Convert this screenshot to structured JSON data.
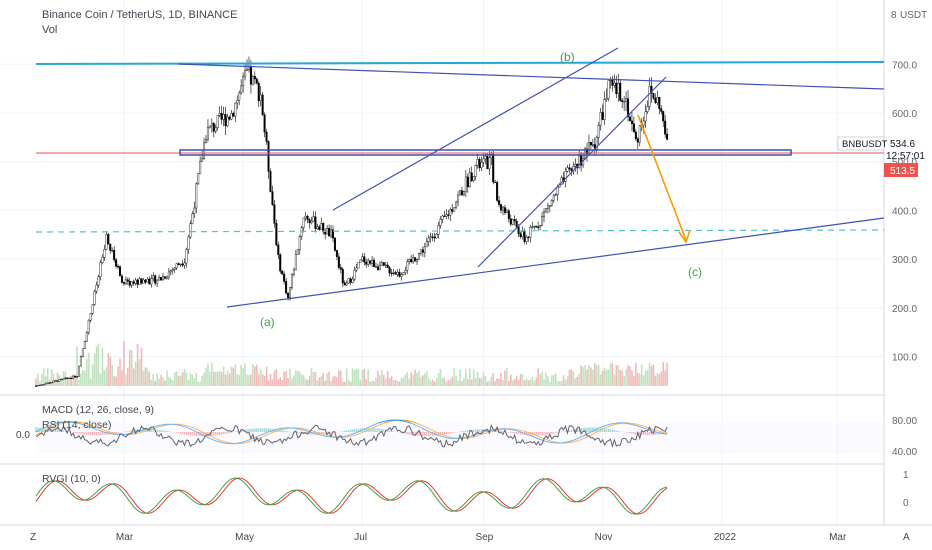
{
  "header": {
    "symbol_title": "Binance Coin / TetherUS, 1D, BINANCE",
    "vol_label": "Vol"
  },
  "price_axis": {
    "currency": "USDT",
    "ticks": [
      "700.0",
      "600.0",
      "500.0",
      "400.0",
      "300.0",
      "200.0",
      "100.0"
    ],
    "tick_values": [
      700,
      600,
      500,
      400,
      300,
      200,
      100
    ],
    "currency_prefix": "8"
  },
  "badges": {
    "symbol": "BNBUSDT",
    "last_price": "534.6",
    "countdown": "12:57:01",
    "line_price": "513.5",
    "line_color": "#ef5350"
  },
  "time_axis": {
    "ticks": [
      "Mar",
      "May",
      "Jul",
      "Sep",
      "Nov",
      "2022",
      "Mar"
    ],
    "z_label": "Z",
    "a_label": "A"
  },
  "annotations": {
    "a": "(a)",
    "b": "(b)",
    "c": "(c)",
    "color": "#43a047"
  },
  "indicators": {
    "macd_label": "MACD (12, 26, close, 9)",
    "macd_value": "0.0",
    "rsi_label": "RSI (14, close)",
    "rsi_ticks": [
      "80.00",
      "40.00"
    ],
    "rvgi_label": "RVGI (10, 0)",
    "rvgi_ticks": [
      "1",
      "0"
    ]
  },
  "colors": {
    "up": "#ffffff",
    "down": "#000000",
    "trendline": "#3f51b5",
    "top_line": "#26a7d6",
    "dashed": "#4dc3d6",
    "arrow": "#ff9800"
  },
  "chart_data": {
    "type": "candlestick",
    "title": "Binance Coin / TetherUS, 1D, BINANCE",
    "x_range": [
      "2021-01-15",
      "2022-03-25"
    ],
    "ylim": [
      0,
      800
    ],
    "key_points": [
      {
        "date": "2021-01-15",
        "price": 40
      },
      {
        "date": "2021-02-05",
        "price": 60
      },
      {
        "date": "2021-02-20",
        "price": 340
      },
      {
        "date": "2021-03-01",
        "price": 250
      },
      {
        "date": "2021-03-20",
        "price": 260
      },
      {
        "date": "2021-04-01",
        "price": 300
      },
      {
        "date": "2021-04-12",
        "price": 560
      },
      {
        "date": "2021-04-25",
        "price": 600
      },
      {
        "date": "2021-05-03",
        "price": 680
      },
      {
        "date": "2021-05-10",
        "price": 640
      },
      {
        "date": "2021-05-19",
        "price": 300
      },
      {
        "date": "2021-05-24",
        "price": 220
      },
      {
        "date": "2021-06-01",
        "price": 390
      },
      {
        "date": "2021-06-15",
        "price": 350
      },
      {
        "date": "2021-06-22",
        "price": 240
      },
      {
        "date": "2021-07-01",
        "price": 300
      },
      {
        "date": "2021-07-20",
        "price": 270
      },
      {
        "date": "2021-08-01",
        "price": 320
      },
      {
        "date": "2021-08-15",
        "price": 400
      },
      {
        "date": "2021-08-28",
        "price": 490
      },
      {
        "date": "2021-09-05",
        "price": 500
      },
      {
        "date": "2021-09-08",
        "price": 420
      },
      {
        "date": "2021-09-22",
        "price": 340
      },
      {
        "date": "2021-09-30",
        "price": 380
      },
      {
        "date": "2021-10-15",
        "price": 480
      },
      {
        "date": "2021-10-28",
        "price": 540
      },
      {
        "date": "2021-11-04",
        "price": 650
      },
      {
        "date": "2021-11-12",
        "price": 640
      },
      {
        "date": "2021-11-18",
        "price": 540
      },
      {
        "date": "2021-11-25",
        "price": 640
      },
      {
        "date": "2021-11-30",
        "price": 620
      },
      {
        "date": "2021-12-04",
        "price": 534.6
      }
    ],
    "drawings": {
      "horizontal_top": 700,
      "horizontal_red": 513.5,
      "dashed_level": 355,
      "support_start": {
        "date": "2021-05-23",
        "price": 205
      },
      "support_end": {
        "date": "2022-03-25",
        "price": 390
      }
    }
  }
}
